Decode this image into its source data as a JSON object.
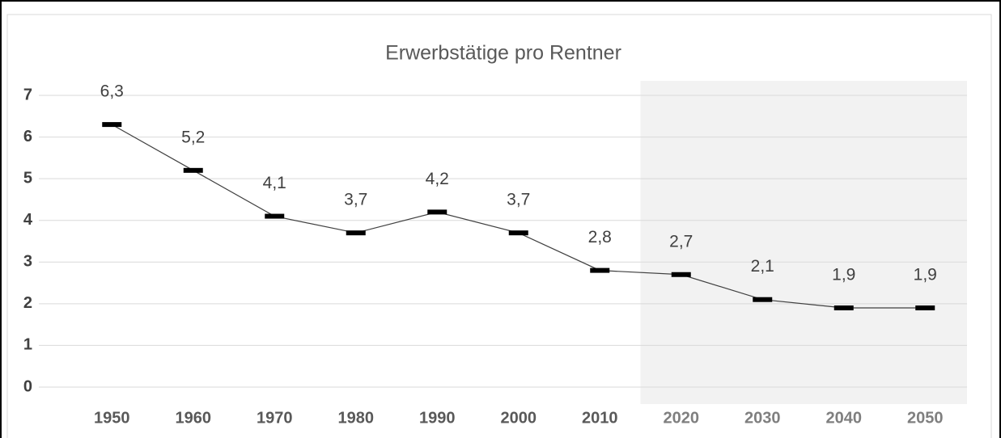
{
  "chart_data": {
    "type": "line",
    "title": "Erwerbstätige pro Rentner",
    "categories": [
      "1950",
      "1960",
      "1970",
      "1980",
      "1990",
      "2000",
      "2010",
      "2020",
      "2030",
      "2040",
      "2050"
    ],
    "values": [
      6.3,
      5.2,
      4.1,
      3.7,
      4.2,
      3.7,
      2.8,
      2.7,
      2.1,
      1.9,
      1.9
    ],
    "value_labels": [
      "6,3",
      "5,2",
      "4,1",
      "3,7",
      "4,2",
      "3,7",
      "2,8",
      "2,7",
      "2,1",
      "1,9",
      "1,9"
    ],
    "color": "#000000",
    "ylim": [
      0,
      7
    ],
    "yticks": [
      0,
      1,
      2,
      3,
      4,
      5,
      6,
      7
    ],
    "grid": true,
    "shade_from": "2020"
  }
}
